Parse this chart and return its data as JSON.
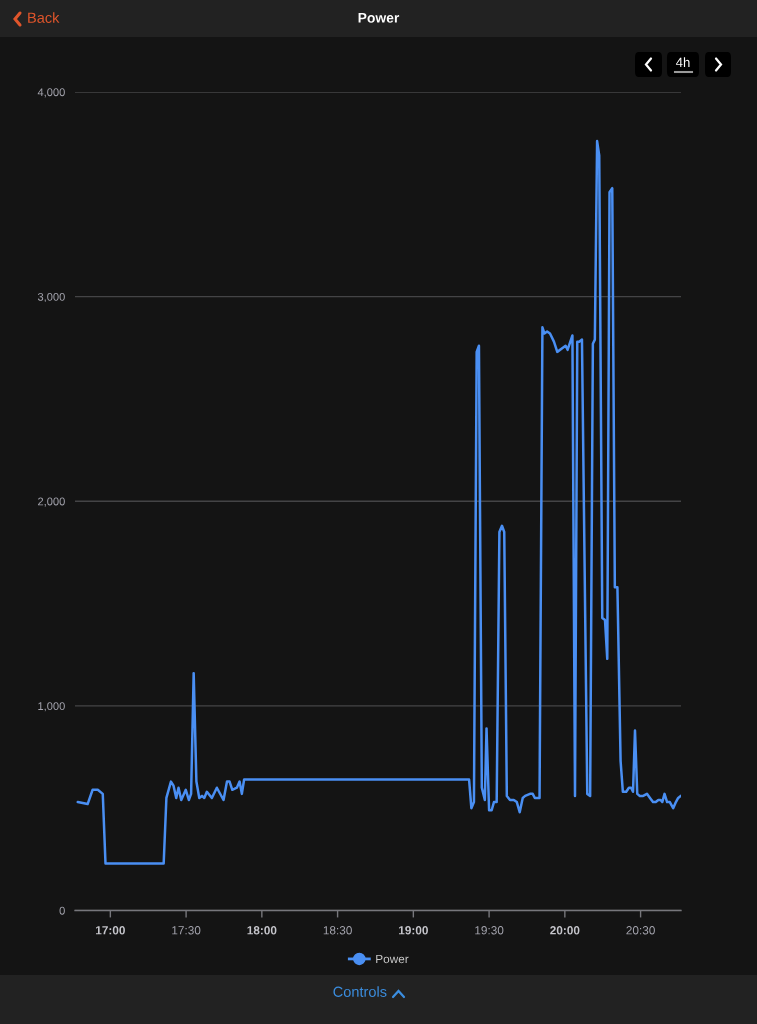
{
  "chart_data": {
    "type": "line",
    "title": "Power",
    "x": [
      16.785,
      16.85,
      16.883,
      16.917,
      16.95,
      16.968,
      17.352,
      17.37,
      17.4,
      17.417,
      17.435,
      17.45,
      17.468,
      17.498,
      17.518,
      17.533,
      17.55,
      17.568,
      17.587,
      17.605,
      17.62,
      17.637,
      17.67,
      17.703,
      17.747,
      17.77,
      17.787,
      17.805,
      17.835,
      17.853,
      17.868,
      17.883,
      19.368,
      19.383,
      19.4,
      19.418,
      19.433,
      19.452,
      19.472,
      19.483,
      19.5,
      19.517,
      19.532,
      19.55,
      19.568,
      19.585,
      19.6,
      19.617,
      19.638,
      19.663,
      19.683,
      19.702,
      19.722,
      19.738,
      19.77,
      19.788,
      19.802,
      19.833,
      19.852,
      19.865,
      19.883,
      19.902,
      19.928,
      19.95,
      19.987,
      20.005,
      20.018,
      20.05,
      20.067,
      20.082,
      20.095,
      20.113,
      20.148,
      20.167,
      20.185,
      20.198,
      20.213,
      20.227,
      20.247,
      20.265,
      20.28,
      20.295,
      20.313,
      20.33,
      20.347,
      20.368,
      20.383,
      20.405,
      20.423,
      20.437,
      20.45,
      20.463,
      20.478,
      20.495,
      20.517,
      20.542,
      20.562,
      20.582,
      20.6,
      20.617,
      20.632,
      20.643,
      20.658,
      20.675,
      20.693,
      20.715,
      20.733,
      20.748,
      20.765
    ],
    "series": [
      {
        "name": "Power",
        "color": "#4a8ff3",
        "values": [
          530,
          520,
          590,
          590,
          570,
          230,
          230,
          550,
          630,
          610,
          550,
          600,
          540,
          590,
          540,
          570,
          1160,
          630,
          550,
          560,
          550,
          580,
          550,
          600,
          540,
          630,
          630,
          590,
          600,
          630,
          570,
          640,
          640,
          500,
          530,
          2730,
          2760,
          600,
          540,
          890,
          490,
          490,
          530,
          530,
          1850,
          1880,
          1850,
          560,
          540,
          540,
          530,
          480,
          550,
          560,
          570,
          570,
          550,
          550,
          2850,
          2820,
          2830,
          2820,
          2780,
          2730,
          2750,
          2760,
          2740,
          2810,
          560,
          2780,
          2780,
          2790,
          570,
          560,
          2770,
          2790,
          3760,
          3690,
          1430,
          1420,
          1230,
          3510,
          3530,
          1580,
          1580,
          730,
          580,
          580,
          600,
          600,
          580,
          880,
          570,
          560,
          560,
          570,
          550,
          530,
          530,
          540,
          540,
          530,
          570,
          530,
          530,
          500,
          530,
          550,
          560
        ]
      }
    ],
    "xlim": [
      16.7667,
      20.7667
    ],
    "xticks": [
      {
        "value": 17,
        "label": "17:00"
      },
      {
        "value": 17.5,
        "label": "17:30"
      },
      {
        "value": 18,
        "label": "18:00"
      },
      {
        "value": 18.5,
        "label": "18:30"
      },
      {
        "value": 19,
        "label": "19:00"
      },
      {
        "value": 19.5,
        "label": "19:30"
      },
      {
        "value": 20,
        "label": "20:00"
      },
      {
        "value": 20.5,
        "label": "20:30"
      }
    ],
    "ylim": [
      0,
      4000
    ],
    "yticks": [
      0,
      {
        "value": 1000,
        "label": "1,000"
      },
      {
        "value": 2000,
        "label": "2,000"
      },
      {
        "value": 3000,
        "label": "3,000"
      },
      {
        "value": 4000,
        "label": "4,000"
      }
    ],
    "grid": "y",
    "legend": "bottom",
    "annotations": [
      "Back",
      "4h",
      "Controls"
    ]
  }
}
